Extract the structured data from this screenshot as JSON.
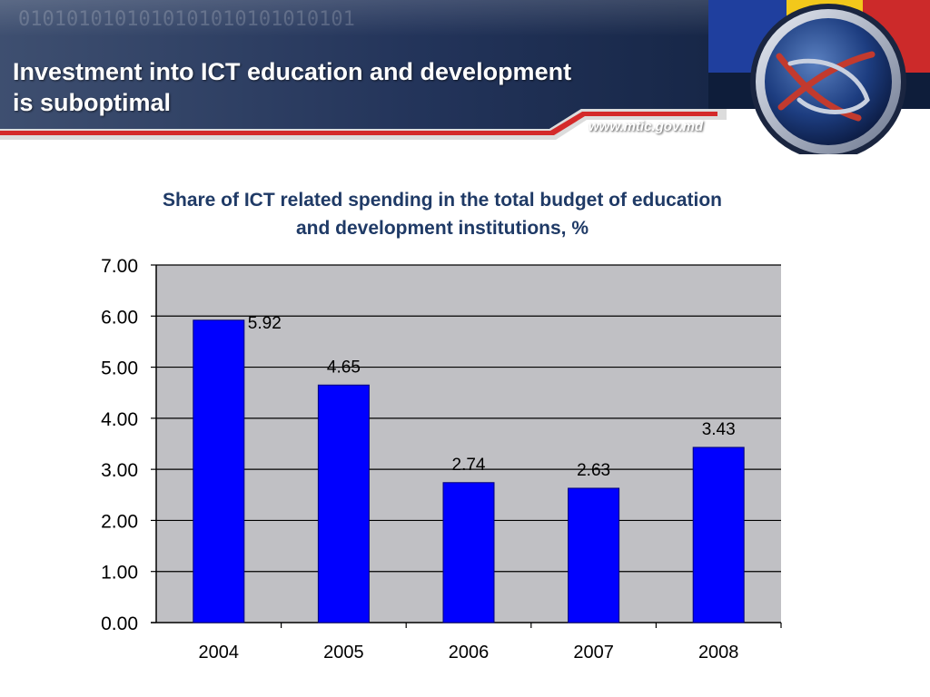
{
  "slide": {
    "title_line1": "Investment into ICT education and development",
    "title_line2": "is suboptimal",
    "website": "www.mtic.gov.md"
  },
  "colors": {
    "banner_dark": "#0e1d3a",
    "banner_mid": "#2c3f66",
    "accent_red": "#d42a2a",
    "flag_blue": "#1f3f9e",
    "flag_yellow": "#f2c81b",
    "flag_red": "#cc2a2a",
    "title_blue": "#1f3a66",
    "plot_bg": "#c0c0c4",
    "bar_fill": "#0000ff"
  },
  "logo": {
    "icon": "mtic-logo-icon"
  },
  "chart_data": {
    "type": "bar",
    "title": "Share of ICT related spending in the total budget of education and development institutions, %",
    "title_line1": "Share of ICT related spending in the total budget of education",
    "title_line2": "and development institutions, %",
    "categories": [
      "2004",
      "2005",
      "2006",
      "2007",
      "2008"
    ],
    "values": [
      5.92,
      4.65,
      2.74,
      2.63,
      3.43
    ],
    "data_labels": [
      "5.92",
      "4.65",
      "2.74",
      "2.63",
      "3.43"
    ],
    "ylim": [
      0,
      7
    ],
    "y_ticks": [
      "0.00",
      "1.00",
      "2.00",
      "3.00",
      "4.00",
      "5.00",
      "6.00",
      "7.00"
    ],
    "grid": true,
    "legend": "none"
  }
}
